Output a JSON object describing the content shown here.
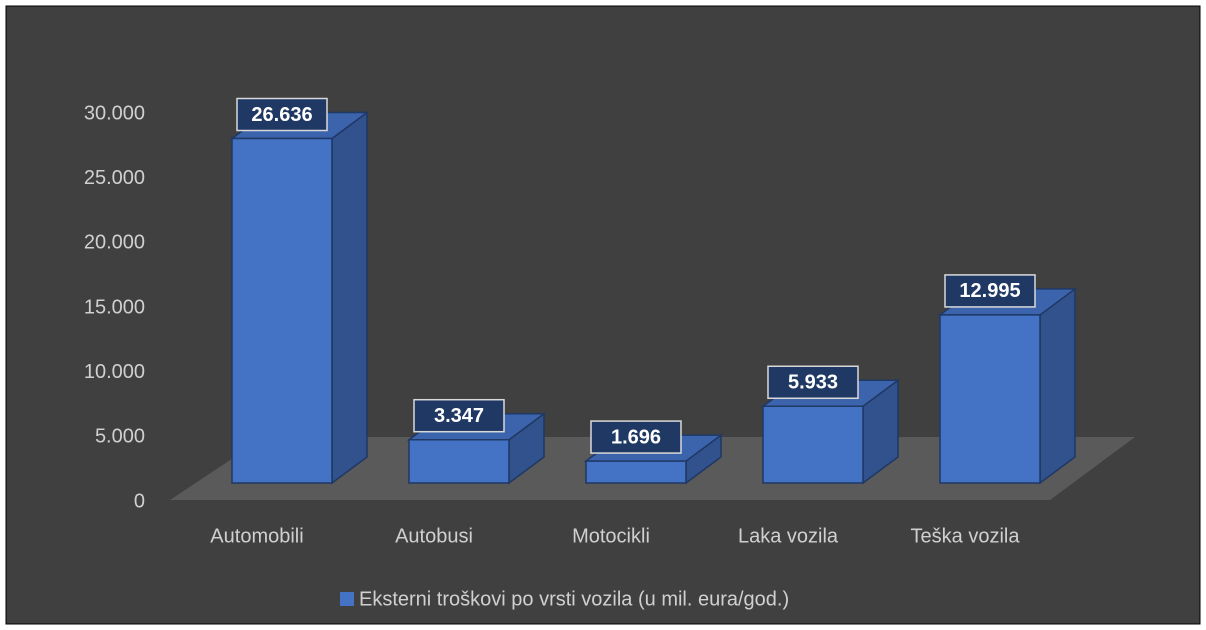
{
  "chart_data": {
    "type": "bar3d",
    "categories": [
      "Automobili",
      "Autobusi",
      "Motocikli",
      "Laka vozila",
      "Teška vozila"
    ],
    "series": [
      {
        "name": "Eksterni troškovi po vrsti vozila (u mil. eura/god.)",
        "color": "#4472c4",
        "values": [
          26636,
          3347,
          1696,
          5933,
          12995
        ],
        "value_labels": [
          "26.636",
          "3.347",
          "1.696",
          "5.933",
          "12.995"
        ]
      }
    ],
    "ylim": [
      0,
      30000
    ],
    "yticks": [
      {
        "value": 0,
        "label": "0"
      },
      {
        "value": 5000,
        "label": "5.000"
      },
      {
        "value": 10000,
        "label": "10.000"
      },
      {
        "value": 15000,
        "label": "15.000"
      },
      {
        "value": 20000,
        "label": "20.000"
      },
      {
        "value": 25000,
        "label": "25.000"
      },
      {
        "value": 30000,
        "label": "30.000"
      }
    ],
    "grid": false,
    "legend": "bottom"
  }
}
